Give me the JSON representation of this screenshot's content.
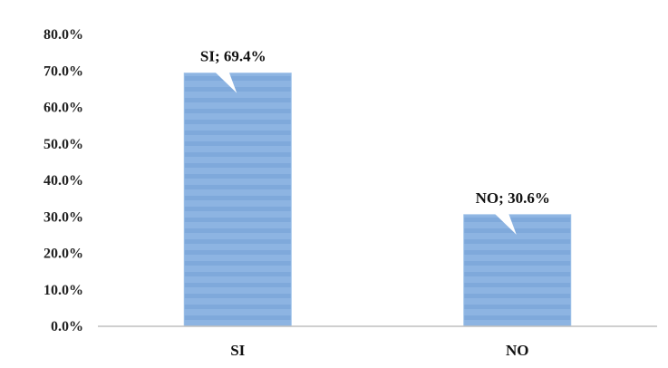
{
  "chart_data": {
    "type": "bar",
    "title": "",
    "xlabel": "",
    "ylabel": "",
    "categories": [
      "SI",
      "NO"
    ],
    "values": [
      69.4,
      30.6
    ],
    "value_unit": "%",
    "data_labels": [
      "SI; 69.4%",
      "NO; 30.6%"
    ],
    "y_ticks": [
      "0.0%",
      "10.0%",
      "20.0%",
      "30.0%",
      "40.0%",
      "50.0%",
      "60.0%",
      "70.0%",
      "80.0%"
    ],
    "ylim": [
      0,
      80
    ],
    "grid": false,
    "legend": "none",
    "colors": {
      "bar": "#8DB4E2",
      "bar_stripe": "#7FA9DB",
      "axis": "#BFBFBF",
      "label_bg": "#FFFFFF"
    }
  }
}
